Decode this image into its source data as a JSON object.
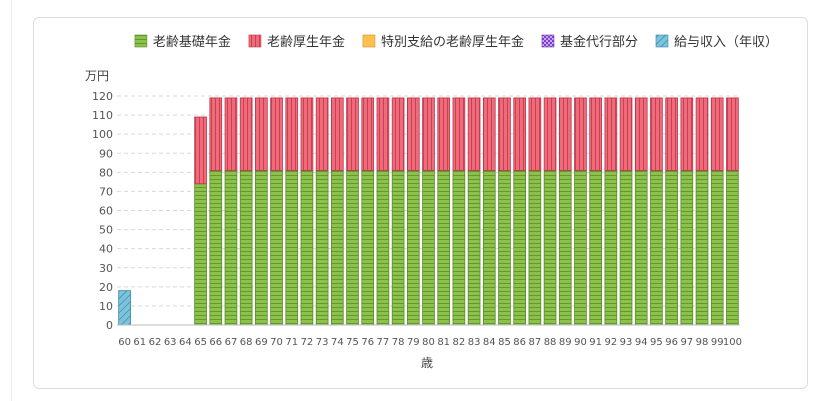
{
  "chart_data": {
    "type": "bar",
    "stacked": true,
    "ylabel": "万円",
    "xlabel": "歳",
    "ylim": [
      0,
      120
    ],
    "yticks": [
      0,
      10,
      20,
      30,
      40,
      50,
      60,
      70,
      80,
      90,
      100,
      110,
      120
    ],
    "grid": true,
    "legend_position": "top-right",
    "categories": [
      "60",
      "61",
      "62",
      "63",
      "64",
      "65",
      "66",
      "67",
      "68",
      "69",
      "70",
      "71",
      "72",
      "73",
      "74",
      "75",
      "76",
      "77",
      "78",
      "79",
      "80",
      "81",
      "82",
      "83",
      "84",
      "85",
      "86",
      "87",
      "88",
      "89",
      "90",
      "91",
      "92",
      "93",
      "94",
      "95",
      "96",
      "97",
      "98",
      "99",
      "100"
    ],
    "series": [
      {
        "name": "老齢基礎年金",
        "color": "#8bc34a",
        "values": [
          0,
          0,
          0,
          0,
          0,
          74,
          81,
          81,
          81,
          81,
          81,
          81,
          81,
          81,
          81,
          81,
          81,
          81,
          81,
          81,
          81,
          81,
          81,
          81,
          81,
          81,
          81,
          81,
          81,
          81,
          81,
          81,
          81,
          81,
          81,
          81,
          81,
          81,
          81,
          81,
          81
        ]
      },
      {
        "name": "老齢厚生年金",
        "color": "#f06a7a",
        "values": [
          0,
          0,
          0,
          0,
          0,
          35,
          38,
          38,
          38,
          38,
          38,
          38,
          38,
          38,
          38,
          38,
          38,
          38,
          38,
          38,
          38,
          38,
          38,
          38,
          38,
          38,
          38,
          38,
          38,
          38,
          38,
          38,
          38,
          38,
          38,
          38,
          38,
          38,
          38,
          38,
          38
        ]
      },
      {
        "name": "特別支給の老齢厚生年金",
        "color": "#ffc04d",
        "values": [
          0,
          0,
          0,
          0,
          0,
          0,
          0,
          0,
          0,
          0,
          0,
          0,
          0,
          0,
          0,
          0,
          0,
          0,
          0,
          0,
          0,
          0,
          0,
          0,
          0,
          0,
          0,
          0,
          0,
          0,
          0,
          0,
          0,
          0,
          0,
          0,
          0,
          0,
          0,
          0,
          0
        ]
      },
      {
        "name": "基金代行部分",
        "color": "#9c64d8",
        "values": [
          0,
          0,
          0,
          0,
          0,
          0,
          0,
          0,
          0,
          0,
          0,
          0,
          0,
          0,
          0,
          0,
          0,
          0,
          0,
          0,
          0,
          0,
          0,
          0,
          0,
          0,
          0,
          0,
          0,
          0,
          0,
          0,
          0,
          0,
          0,
          0,
          0,
          0,
          0,
          0,
          0
        ]
      },
      {
        "name": "給与収入（年収）",
        "color": "#5fb3cf",
        "values": [
          18,
          0,
          0,
          0,
          0,
          0,
          0,
          0,
          0,
          0,
          0,
          0,
          0,
          0,
          0,
          0,
          0,
          0,
          0,
          0,
          0,
          0,
          0,
          0,
          0,
          0,
          0,
          0,
          0,
          0,
          0,
          0,
          0,
          0,
          0,
          0,
          0,
          0,
          0,
          0,
          0
        ]
      }
    ]
  }
}
